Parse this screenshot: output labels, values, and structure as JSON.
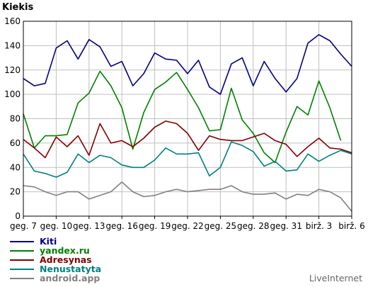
{
  "chart_data": {
    "type": "line",
    "title": "",
    "ylabel": "Kiekis",
    "ylim": [
      0,
      160
    ],
    "yticks": [
      0,
      20,
      40,
      60,
      80,
      100,
      120,
      140,
      160
    ],
    "grid": true,
    "legend_position": "bottom-left",
    "x_ticks": [
      "geg. 7",
      "geg. 10",
      "geg. 13",
      "geg. 16",
      "geg. 19",
      "geg. 22",
      "geg. 25",
      "geg. 28",
      "geg. 31",
      "birž. 3",
      "birž. 6"
    ],
    "x": [
      "geg. 7",
      "geg. 8",
      "geg. 9",
      "geg. 10",
      "geg. 11",
      "geg. 12",
      "geg. 13",
      "geg. 14",
      "geg. 15",
      "geg. 16",
      "geg. 17",
      "geg. 18",
      "geg. 19",
      "geg. 20",
      "geg. 21",
      "geg. 22",
      "geg. 23",
      "geg. 24",
      "geg. 25",
      "geg. 26",
      "geg. 27",
      "geg. 28",
      "geg. 29",
      "geg. 30",
      "geg. 31",
      "birž. 1",
      "birž. 2",
      "birž. 3",
      "birž. 4",
      "birž. 5",
      "birž. 6"
    ],
    "series": [
      {
        "name": "Kiti",
        "color": "#000080",
        "values": [
          113,
          107,
          109,
          138,
          144,
          129,
          145,
          139,
          123,
          127,
          107,
          117,
          134,
          129,
          128,
          117,
          128,
          106,
          100,
          125,
          130,
          107,
          127,
          113,
          102,
          113,
          142,
          149,
          144,
          133,
          123
        ]
      },
      {
        "name": "yandex.ru",
        "color": "#008000",
        "values": [
          84,
          56,
          66,
          66,
          67,
          93,
          101,
          119,
          107,
          89,
          55,
          85,
          104,
          110,
          118,
          104,
          89,
          70,
          71,
          105,
          79,
          68,
          52,
          44,
          69,
          90,
          83,
          111,
          89,
          62,
          null
        ]
      },
      {
        "name": "Adresynas",
        "color": "#800000",
        "values": [
          63,
          56,
          48,
          65,
          57,
          66,
          50,
          76,
          60,
          62,
          57,
          64,
          73,
          78,
          76,
          68,
          54,
          66,
          63,
          62,
          62,
          65,
          68,
          62,
          59,
          49,
          57,
          64,
          56,
          55,
          52
        ]
      },
      {
        "name": "Nenustatyta",
        "color": "#008080",
        "values": [
          51,
          37,
          35,
          32,
          36,
          51,
          44,
          50,
          48,
          42,
          40,
          40,
          46,
          56,
          51,
          51,
          52,
          33,
          40,
          61,
          58,
          53,
          41,
          45,
          37,
          38,
          51,
          45,
          50,
          54,
          51
        ]
      },
      {
        "name": "android.app",
        "color": "#808080",
        "values": [
          25,
          24,
          20,
          17,
          20,
          20,
          14,
          17,
          20,
          28,
          20,
          16,
          17,
          20,
          22,
          20,
          21,
          22,
          22,
          25,
          20,
          18,
          18,
          19,
          14,
          18,
          17,
          22,
          20,
          15,
          4
        ]
      }
    ]
  },
  "brand": "LiveInternet"
}
